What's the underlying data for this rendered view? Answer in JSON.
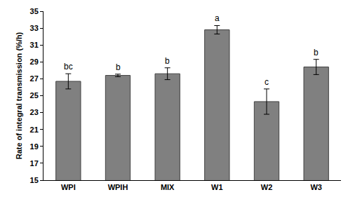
{
  "chart_data": {
    "type": "bar",
    "y_label": "Rate of integral transmission (%/h)",
    "categories": [
      "WPI",
      "WPIH",
      "MIX",
      "W1",
      "W2",
      "W3"
    ],
    "values": [
      26.7,
      27.4,
      27.6,
      32.8,
      24.3,
      28.4
    ],
    "errors": [
      0.9,
      0.15,
      0.7,
      0.5,
      1.5,
      0.9
    ],
    "annotations": [
      {
        "category": "WPI",
        "text": "bc"
      },
      {
        "category": "WPIH",
        "text": "b"
      },
      {
        "category": "MIX",
        "text": "b"
      },
      {
        "category": "W1",
        "text": "a"
      },
      {
        "category": "W2",
        "text": "c"
      },
      {
        "category": "W3",
        "text": "b"
      }
    ],
    "color": "#808080",
    "ylim": [
      15,
      35
    ],
    "yticks": [
      15,
      17,
      19,
      21,
      23,
      25,
      27,
      29,
      31,
      33,
      35
    ],
    "grid": false
  }
}
